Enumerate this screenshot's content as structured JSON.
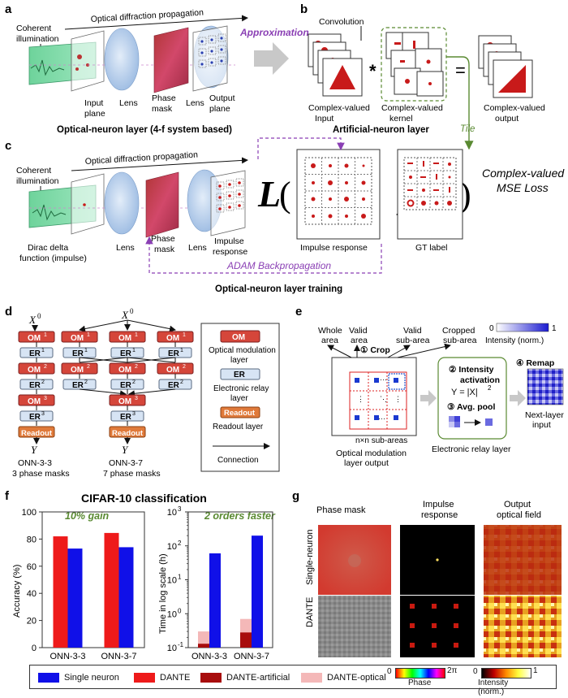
{
  "panels": {
    "a": "a",
    "b": "b",
    "c": "c",
    "d": "d",
    "e": "e",
    "f": "f",
    "g": "g"
  },
  "panel_a": {
    "propagation": "Optical diffraction propagation",
    "illumination": [
      "Coherent",
      "illumination"
    ],
    "input_plane": [
      "Input",
      "plane"
    ],
    "lens1": "Lens",
    "phase_mask": [
      "Phase",
      "mask"
    ],
    "lens2": "Lens",
    "output_plane": [
      "Output",
      "plane"
    ],
    "caption": "Optical-neuron layer (4-f system based)",
    "approximation": "Approximation"
  },
  "panel_b": {
    "convolution": "Convolution",
    "input": [
      "Complex-valued",
      "Input"
    ],
    "kernel": [
      "Complex-valued",
      "kernel"
    ],
    "output": [
      "Complex-valued",
      "output"
    ],
    "caption": "Artificial-neuron layer",
    "tile": "Tile"
  },
  "panel_c": {
    "propagation": "Optical diffraction propagation",
    "illumination": [
      "Coherent",
      "illumination"
    ],
    "dirac": [
      "Dirac delta",
      "function (impulse)"
    ],
    "lens1": "Lens",
    "phase_mask": [
      "Phase",
      "mask"
    ],
    "lens2": "Lens",
    "impulse": [
      "Impulse",
      "response"
    ],
    "loss_symbol": "L",
    "impulse_label": "Impulse response",
    "gt_label": "GT label",
    "loss_name": [
      "Complex-valued",
      "MSE Loss"
    ],
    "adam": "ADAM Backpropagation",
    "caption": "Optical-neuron layer training"
  },
  "panel_d": {
    "x0": "X",
    "x0_sup": "0",
    "y": "Y",
    "om": "OM",
    "er": "ER",
    "readout": "Readout",
    "sup1": "1",
    "sup2": "2",
    "sup3": "3",
    "onn33": [
      "ONN-3-3",
      "3 phase masks"
    ],
    "onn37": [
      "ONN-3-7",
      "7 phase masks"
    ],
    "legend": {
      "om_desc": [
        "Optical modulation",
        "layer"
      ],
      "er_desc": [
        "Electronic relay",
        "layer"
      ],
      "readout_desc": "Readout layer",
      "connection": "Connection"
    }
  },
  "panel_e": {
    "whole": [
      "Whole",
      "area"
    ],
    "valid": [
      "Valid",
      "area"
    ],
    "valid_sub": [
      "Valid",
      "sub-area"
    ],
    "cropped": [
      "Cropped",
      "sub-area"
    ],
    "colorbar": {
      "min": "0",
      "max": "1",
      "label": "Intensity (norm.)"
    },
    "crop": "① Crop",
    "intensity": [
      "② Intensity",
      "activation"
    ],
    "formula": "Y = |X|",
    "formula_sup": "2",
    "avgpool": "③ Avg. pool",
    "remap": "④ Remap",
    "next": [
      "Next-layer",
      "input"
    ],
    "nxn": "n×n sub-areas",
    "om_output": [
      "Optical modulation",
      "layer output"
    ],
    "er_layer": "Electronic relay layer"
  },
  "chart_data": [
    {
      "type": "bar",
      "title": "CIFAR-10 classification",
      "annotation": "10% gain",
      "categories": [
        "ONN-3-3",
        "ONN-3-7"
      ],
      "ylabel": "Accuracy (%)",
      "ylim": [
        0,
        100
      ],
      "yticks": [
        "0",
        "20",
        "40",
        "60",
        "80",
        "100"
      ],
      "series": [
        {
          "name": "DANTE",
          "values": [
            82,
            84.5
          ]
        },
        {
          "name": "Single neuron",
          "values": [
            73,
            74
          ]
        }
      ]
    },
    {
      "type": "bar",
      "annotation": "2 orders faster",
      "categories": [
        "ONN-3-3",
        "ONN-3-7"
      ],
      "ylabel": "Time in log scale (h)",
      "ylim": [
        0.1,
        1000
      ],
      "log": true,
      "yticks": [
        {
          "base": "10",
          "exp": "-1"
        },
        {
          "base": "10",
          "exp": "0"
        },
        {
          "base": "10",
          "exp": "1"
        },
        {
          "base": "10",
          "exp": "2"
        },
        {
          "base": "10",
          "exp": "3"
        }
      ],
      "series": [
        {
          "name": "DANTE-artificial",
          "values": [
            0.13,
            0.28
          ]
        },
        {
          "name": "DANTE-optical",
          "values": [
            0.3,
            0.7
          ]
        },
        {
          "name": "Single neuron",
          "values": [
            60,
            200
          ]
        }
      ]
    }
  ],
  "panel_g": {
    "cols": [
      "Phase mask",
      "Impulse",
      "Output"
    ],
    "cols2": [
      "",
      "response",
      "optical field"
    ],
    "rows": [
      "Single-neuron",
      "DANTE"
    ]
  },
  "legend": {
    "items": [
      "Single neuron",
      "DANTE",
      "DANTE-artificial",
      "DANTE-optical"
    ],
    "phase_min": "0",
    "phase_max": "2π",
    "phase_label": "Phase",
    "int_min": "0",
    "int_max": "1",
    "int_label": "Intensity (norm.)"
  },
  "colors": {
    "single": "#1010e8",
    "dante": "#ee1a1a",
    "dante_art": "#a80d0d",
    "dante_opt": "#f4b8b8",
    "accent_purple": "#8a3fb4",
    "accent_green": "#5a8a32",
    "om": "#d5463a",
    "er": "#d7e4f4",
    "readout": "#e07a3a"
  }
}
